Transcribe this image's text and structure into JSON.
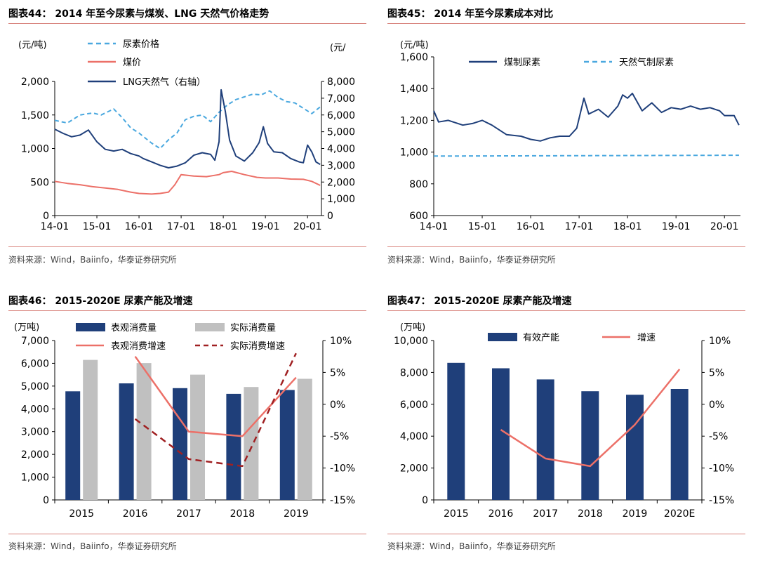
{
  "colors": {
    "navy": "#1f3f7a",
    "light_blue": "#4aa8df",
    "salmon": "#ec7068",
    "gray": "#c0c0c0",
    "dark_red": "#a02022",
    "rule": "#d8837d"
  },
  "chart_data": [
    {
      "id": "fig44",
      "type": "line",
      "title": "图表44：  2014 年至今尿素与煤炭、LNG 天然气价格走势",
      "source": "资料来源：Wind，Baiinfo，华泰证券研究所",
      "ylabel_left": "(元/吨)",
      "ylabel_right": "(元/",
      "x_ticks": [
        "14-01",
        "15-01",
        "16-01",
        "17-01",
        "18-01",
        "19-01",
        "20-01"
      ],
      "ylim_left": [
        0,
        2000
      ],
      "ylim_right": [
        0,
        8000
      ],
      "yticks_left": [
        "2,000",
        "1,500",
        "1,000",
        "500",
        "0"
      ],
      "yticks_right": [
        "8,000",
        "7,000",
        "6,000",
        "5,000",
        "4,000",
        "3,000",
        "2,000",
        "1,000",
        "0"
      ],
      "legend": [
        "尿素价格",
        "煤价",
        "LNG天然气（右轴）"
      ],
      "series": [
        {
          "name": "尿素价格",
          "axis": "left",
          "style": "dashed",
          "color": "#4aa8df",
          "x": [
            2014.0,
            2014.3,
            2014.6,
            2014.9,
            2015.1,
            2015.4,
            2015.6,
            2015.8,
            2016.0,
            2016.3,
            2016.5,
            2016.7,
            2016.9,
            2017.1,
            2017.3,
            2017.5,
            2017.7,
            2017.9,
            2018.1,
            2018.3,
            2018.5,
            2018.7,
            2018.9,
            2019.1,
            2019.3,
            2019.5,
            2019.7,
            2019.9,
            2020.1,
            2020.3
          ],
          "y": [
            1420,
            1380,
            1500,
            1530,
            1500,
            1590,
            1460,
            1310,
            1230,
            1080,
            1000,
            1130,
            1230,
            1430,
            1480,
            1500,
            1400,
            1540,
            1650,
            1730,
            1770,
            1810,
            1800,
            1860,
            1760,
            1700,
            1680,
            1600,
            1520,
            1620
          ]
        },
        {
          "name": "煤价",
          "axis": "left",
          "style": "solid",
          "color": "#ec7068",
          "x": [
            2014.0,
            2014.3,
            2014.6,
            2014.9,
            2015.2,
            2015.5,
            2015.8,
            2016.0,
            2016.3,
            2016.5,
            2016.7,
            2016.85,
            2017.0,
            2017.3,
            2017.6,
            2017.9,
            2018.0,
            2018.2,
            2018.5,
            2018.8,
            2019.0,
            2019.3,
            2019.6,
            2019.9,
            2020.1,
            2020.3
          ],
          "y": [
            510,
            480,
            460,
            430,
            410,
            390,
            350,
            330,
            320,
            330,
            350,
            460,
            610,
            590,
            580,
            610,
            640,
            660,
            610,
            570,
            560,
            560,
            545,
            540,
            510,
            450
          ]
        },
        {
          "name": "LNG天然气（右轴）",
          "axis": "right",
          "style": "solid",
          "color": "#1f3f7a",
          "x": [
            2014.0,
            2014.2,
            2014.4,
            2014.6,
            2014.8,
            2015.0,
            2015.2,
            2015.4,
            2015.6,
            2015.8,
            2016.0,
            2016.1,
            2016.3,
            2016.5,
            2016.7,
            2016.9,
            2017.1,
            2017.3,
            2017.5,
            2017.7,
            2017.8,
            2017.9,
            2017.95,
            2018.05,
            2018.15,
            2018.3,
            2018.5,
            2018.7,
            2018.85,
            2018.95,
            2019.05,
            2019.2,
            2019.4,
            2019.6,
            2019.8,
            2019.9,
            2020.0,
            2020.1,
            2020.2,
            2020.3
          ],
          "y": [
            5150,
            4900,
            4700,
            4800,
            5100,
            4400,
            3950,
            3850,
            3950,
            3700,
            3550,
            3400,
            3200,
            3000,
            2850,
            2950,
            3150,
            3600,
            3750,
            3650,
            3300,
            4400,
            7500,
            6200,
            4500,
            3550,
            3250,
            3750,
            4350,
            5300,
            4300,
            3800,
            3750,
            3400,
            3200,
            3150,
            4200,
            3800,
            3200,
            3050
          ]
        }
      ]
    },
    {
      "id": "fig45",
      "type": "line",
      "title": "图表45：  2014 年至今尿素成本对比",
      "source": "资料来源：Wind，Baiinfo，华泰证券研究所",
      "ylabel": "(元/吨)",
      "x_ticks": [
        "14-01",
        "15-01",
        "16-01",
        "17-01",
        "18-01",
        "19-01",
        "20-01"
      ],
      "ylim": [
        600,
        1600
      ],
      "yticks": [
        "1,600",
        "1,400",
        "1,200",
        "1,000",
        "800",
        "600"
      ],
      "legend": [
        "煤制尿素",
        "天然气制尿素"
      ],
      "series": [
        {
          "name": "煤制尿素",
          "style": "solid",
          "color": "#1f3f7a",
          "x": [
            2014.0,
            2014.1,
            2014.3,
            2014.6,
            2014.8,
            2015.0,
            2015.2,
            2015.5,
            2015.8,
            2016.0,
            2016.2,
            2016.4,
            2016.6,
            2016.8,
            2016.95,
            2017.1,
            2017.2,
            2017.4,
            2017.6,
            2017.8,
            2017.9,
            2018.0,
            2018.1,
            2018.3,
            2018.5,
            2018.7,
            2018.9,
            2019.1,
            2019.3,
            2019.5,
            2019.7,
            2019.9,
            2020.0,
            2020.1,
            2020.2,
            2020.3
          ],
          "y": [
            1260,
            1190,
            1200,
            1170,
            1180,
            1200,
            1170,
            1110,
            1100,
            1080,
            1070,
            1090,
            1100,
            1100,
            1150,
            1340,
            1240,
            1270,
            1220,
            1290,
            1360,
            1340,
            1370,
            1260,
            1310,
            1250,
            1280,
            1270,
            1290,
            1270,
            1280,
            1260,
            1230,
            1230,
            1230,
            1170
          ]
        },
        {
          "name": "天然气制尿素",
          "style": "dashed",
          "color": "#4aa8df",
          "x": [
            2014.0,
            2020.3
          ],
          "y": [
            975,
            980
          ]
        }
      ]
    },
    {
      "id": "fig46",
      "type": "bar",
      "title": "图表46：  2015-2020E 尿素产能及增速",
      "source": "资料来源：Wind，Baiinfo，华泰证券研究所",
      "ylabel": "(万吨)",
      "categories": [
        "2015",
        "2016",
        "2017",
        "2018",
        "2019"
      ],
      "ylim_left": [
        0,
        7000
      ],
      "ylim_right": [
        -15,
        10
      ],
      "yticks_left": [
        "7,000",
        "6,000",
        "5,000",
        "4,000",
        "3,000",
        "2,000",
        "1,000",
        "0"
      ],
      "yticks_right": [
        "10%",
        "5%",
        "0%",
        "-5%",
        "-10%",
        "-15%"
      ],
      "legend": [
        "表观消费量",
        "实际消费量",
        "表观消费增速",
        "实际消费增速"
      ],
      "series": [
        {
          "name": "表观消费量",
          "kind": "bar",
          "color": "#1f3f7a",
          "values": [
            4770,
            5120,
            4910,
            4660,
            4830
          ]
        },
        {
          "name": "实际消费量",
          "kind": "bar",
          "color": "#c0c0c0",
          "values": [
            6150,
            6010,
            5500,
            4960,
            5320
          ]
        },
        {
          "name": "表观消费增速",
          "kind": "line",
          "style": "solid",
          "color": "#ec7068",
          "values": [
            null,
            7.5,
            -4.3,
            -5.0,
            4.2
          ]
        },
        {
          "name": "实际消费增速",
          "kind": "line",
          "style": "dashed",
          "color": "#a02022",
          "values": [
            null,
            -2.3,
            -8.6,
            -9.7,
            8.0
          ]
        }
      ]
    },
    {
      "id": "fig47",
      "type": "bar",
      "title": "图表47：  2015-2020E 尿素产能及增速",
      "source": "资料来源：Wind，Baiinfo，华泰证券研究所",
      "ylabel": "(万吨)",
      "categories": [
        "2015",
        "2016",
        "2017",
        "2018",
        "2019",
        "2020E"
      ],
      "ylim_left": [
        0,
        10000
      ],
      "ylim_right": [
        -15,
        10
      ],
      "yticks_left": [
        "10,000",
        "8,000",
        "6,000",
        "4,000",
        "2,000",
        "0"
      ],
      "yticks_right": [
        "10%",
        "5%",
        "0%",
        "-5%",
        "-10%",
        "-15%"
      ],
      "legend": [
        "有效产能",
        "增速"
      ],
      "series": [
        {
          "name": "有效产能",
          "kind": "bar",
          "color": "#1f3f7a",
          "values": [
            8600,
            8260,
            7560,
            6820,
            6600,
            6960
          ]
        },
        {
          "name": "增速",
          "kind": "line",
          "style": "solid",
          "color": "#ec7068",
          "values": [
            null,
            -4.0,
            -8.5,
            -9.7,
            -3.2,
            5.5
          ]
        }
      ]
    }
  ]
}
